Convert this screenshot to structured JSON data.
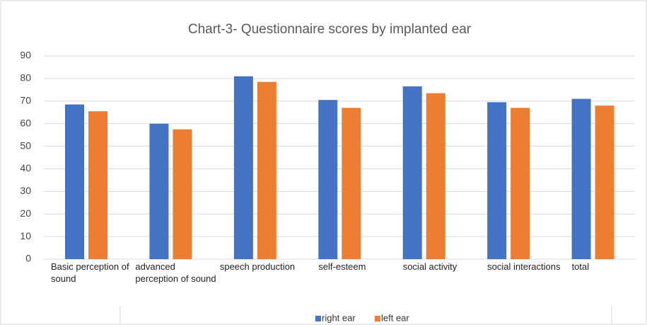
{
  "chart_data": {
    "type": "bar",
    "title": "Chart-3- Questionnaire scores by implanted ear",
    "categories": [
      "Basic perception of sound",
      "advanced perception of sound",
      "speech production",
      "self-esteem",
      "social activity",
      "social interactions",
      "total"
    ],
    "series": [
      {
        "name": "right ear",
        "color": "#4472c4",
        "values": [
          68.5,
          60,
          81,
          70.5,
          76.5,
          69.5,
          71
        ]
      },
      {
        "name": "left ear",
        "color": "#ed7d31",
        "values": [
          65.5,
          57.5,
          78.5,
          67,
          73.5,
          67,
          68
        ]
      }
    ],
    "ylim": [
      0,
      90
    ],
    "yticks": [
      0,
      10,
      20,
      30,
      40,
      50,
      60,
      70,
      80,
      90
    ],
    "grid": true,
    "legend": "bottom"
  }
}
